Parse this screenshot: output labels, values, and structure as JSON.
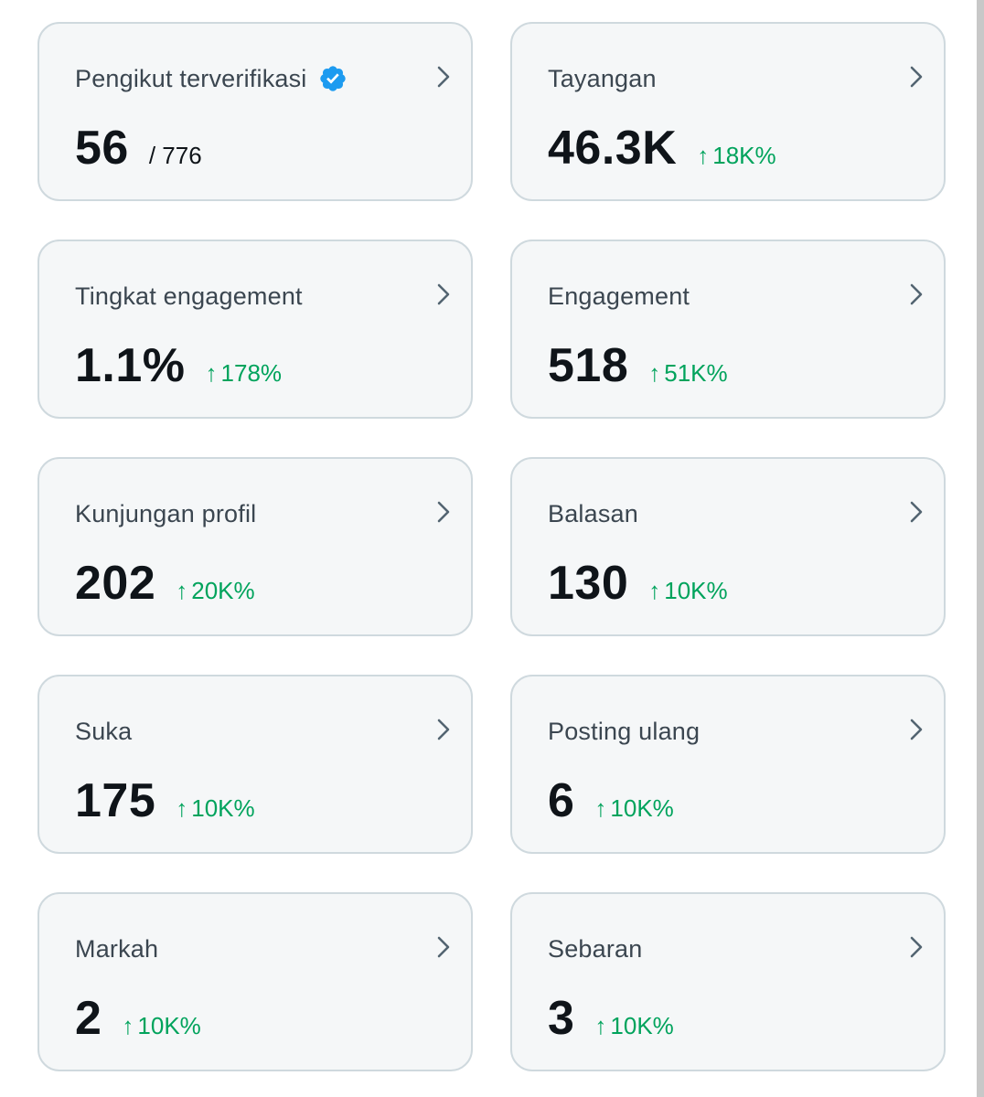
{
  "colors": {
    "card_background": "#f5f7f8",
    "card_border": "#cfd9de",
    "title_text": "#3b4650",
    "value_text": "#0f1419",
    "increase_green": "#00a35c",
    "verified_blue": "#1d9bf0",
    "chevron_gray": "#536471"
  },
  "icons": {
    "verified": "verified-badge-icon",
    "chevron": "chevron-right-icon",
    "arrow": "arrow-up-icon"
  },
  "cards": [
    {
      "title": "Pengikut terverifikasi",
      "value": "56",
      "total": "/ 776",
      "verified": true
    },
    {
      "title": "Tayangan",
      "value": "46.3K",
      "arrow": "↑",
      "change": "18K%"
    },
    {
      "title": "Tingkat engagement",
      "value": "1.1%",
      "arrow": "↑",
      "change": "178%"
    },
    {
      "title": "Engagement",
      "value": "518",
      "arrow": "↑",
      "change": "51K%"
    },
    {
      "title": "Kunjungan profil",
      "value": "202",
      "arrow": "↑",
      "change": "20K%"
    },
    {
      "title": "Balasan",
      "value": "130",
      "arrow": "↑",
      "change": "10K%"
    },
    {
      "title": "Suka",
      "value": "175",
      "arrow": "↑",
      "change": "10K%"
    },
    {
      "title": "Posting ulang",
      "value": "6",
      "arrow": "↑",
      "change": "10K%"
    },
    {
      "title": "Markah",
      "value": "2",
      "arrow": "↑",
      "change": "10K%"
    },
    {
      "title": "Sebaran",
      "value": "3",
      "arrow": "↑",
      "change": "10K%"
    }
  ]
}
